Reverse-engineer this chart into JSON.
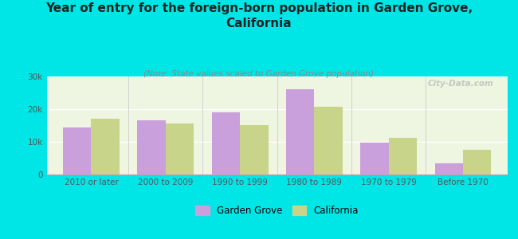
{
  "title": "Year of entry for the foreign-born population in Garden Grove,\nCalifornia",
  "subtitle": "(Note: State values scaled to Garden Grove population)",
  "categories": [
    "2010 or later",
    "2000 to 2009",
    "1990 to 1999",
    "1980 to 1989",
    "1970 to 1979",
    "Before 1970"
  ],
  "garden_grove": [
    14500,
    16500,
    19000,
    26000,
    9800,
    3500
  ],
  "california": [
    17000,
    15500,
    15000,
    20800,
    11200,
    7500
  ],
  "garden_grove_color": "#c9a0dc",
  "california_color": "#c8d48a",
  "background_color": "#00e5e5",
  "plot_bg": "#eef5e0",
  "ylim": [
    0,
    30000
  ],
  "yticks": [
    0,
    10000,
    20000,
    30000
  ],
  "ytick_labels": [
    "0",
    "10k",
    "20k",
    "30k"
  ],
  "watermark": "City-Data.com",
  "legend_labels": [
    "Garden Grove",
    "California"
  ],
  "title_fontsize": 11,
  "subtitle_fontsize": 7.5,
  "bar_width": 0.38
}
